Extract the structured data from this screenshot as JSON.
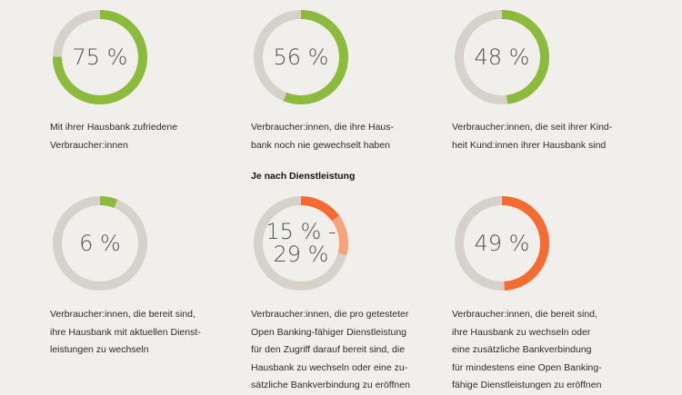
{
  "section_heading": "Je nach Dienstleistung",
  "colors": {
    "track": "#d6d1cb",
    "green": "#8cba3a",
    "orange": "#f76b30",
    "light_orange": "#f7a479"
  },
  "chart_data": [
    {
      "type": "pie",
      "variant": "donut",
      "value_label": "75 %",
      "values": [
        75
      ],
      "colors": [
        "#8cba3a"
      ],
      "caption": "Mit ihrer Hausbank zufriedene\nVerbraucher:innen"
    },
    {
      "type": "pie",
      "variant": "donut",
      "value_label": "56 %",
      "values": [
        56
      ],
      "colors": [
        "#8cba3a"
      ],
      "caption": "Verbraucher:innen, die ihre Haus-\nbank noch nie gewechselt haben"
    },
    {
      "type": "pie",
      "variant": "donut",
      "value_label": "48 %",
      "values": [
        48
      ],
      "colors": [
        "#8cba3a"
      ],
      "caption": "Verbraucher:innen, die seit ihrer Kind-\nheit Kund:innen ihrer Hausbank sind"
    },
    {
      "type": "pie",
      "variant": "donut",
      "value_label": "6 %",
      "values": [
        6
      ],
      "colors": [
        "#8cba3a"
      ],
      "caption": "Verbraucher:innen, die bereit sind,\nihre Hausbank mit aktuellen Dienst-\nleistungen zu wechseln"
    },
    {
      "type": "pie",
      "variant": "donut",
      "value_label": "15 % -",
      "value_label_2": "29 %",
      "values": [
        15,
        14
      ],
      "colors": [
        "#f76b30",
        "#f7a479"
      ],
      "caption": "Verbraucher:innen, die pro getesteter\nOpen Banking-fähiger Dienstleistung\nfür den Zugriff darauf bereit sind, die\nHausbank zu wechseln oder eine zu-\nsätzliche Bankverbindung zu eröffnen"
    },
    {
      "type": "pie",
      "variant": "donut",
      "value_label": "49 %",
      "values": [
        49
      ],
      "colors": [
        "#f76b30"
      ],
      "caption": "Verbraucher:innen, die bereit sind,\nihre Hausbank zu wechseln oder\neine zusätzliche Bankverbindung\nfür mindestens eine Open Banking-\nfähige Dienstleistungen zu eröffnen"
    }
  ]
}
